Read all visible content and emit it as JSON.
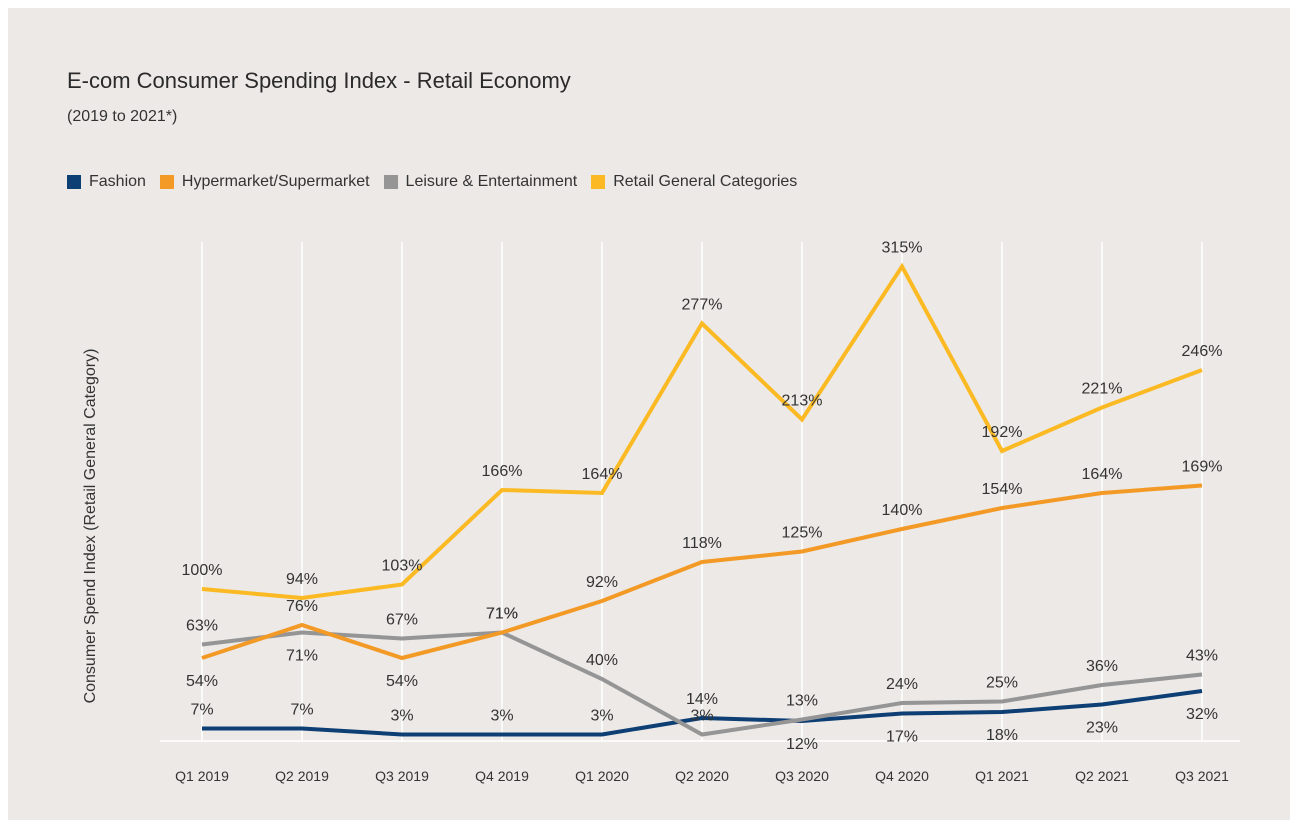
{
  "title": "E-com Consumer Spending Index - Retail Economy",
  "subtitle": "(2019 to 2021*)",
  "chart_data": {
    "type": "line",
    "ylabel": "Consumer Spend Index (Retail General Category)",
    "categories": [
      "Q1 2019",
      "Q2 2019",
      "Q3 2019",
      "Q4 2019",
      "Q1 2020",
      "Q2 2020",
      "Q3 2020",
      "Q4 2020",
      "Q1 2021",
      "Q2 2021",
      "Q3 2021"
    ],
    "grid": "vertical",
    "legend_position": "top-left",
    "series": [
      {
        "name": "Fashion",
        "color": "#0d3e74",
        "values": [
          7,
          7,
          3,
          3,
          3,
          14,
          12,
          17,
          18,
          23,
          32
        ],
        "labels": [
          "7%",
          "7%",
          "3%",
          "3%",
          "3%",
          "14%",
          "12%",
          "17%",
          "18%",
          "23%",
          "32%"
        ]
      },
      {
        "name": "Hypermarket/Supermarket",
        "color": "#f39a26",
        "values": [
          54,
          76,
          54,
          71,
          92,
          118,
          125,
          140,
          154,
          164,
          169
        ],
        "labels": [
          "54%",
          "76%",
          "54%",
          "71%",
          "92%",
          "118%",
          "125%",
          "140%",
          "154%",
          "164%",
          "169%"
        ]
      },
      {
        "name": "Leisure & Entertainment",
        "color": "#959595",
        "values": [
          63,
          71,
          67,
          71,
          40,
          3,
          13,
          24,
          25,
          36,
          43
        ],
        "labels": [
          "63%",
          "71%",
          "67%",
          "71%",
          "40%",
          "3%",
          "13%",
          "24%",
          "25%",
          "36%",
          "43%"
        ]
      },
      {
        "name": "Retail General Categories",
        "color": "#fbba24",
        "values": [
          100,
          94,
          103,
          166,
          164,
          277,
          213,
          315,
          192,
          221,
          246
        ],
        "labels": [
          "100%",
          "94%",
          "103%",
          "166%",
          "164%",
          "277%",
          "213%",
          "315%",
          "192%",
          "221%",
          "246%"
        ]
      }
    ]
  }
}
